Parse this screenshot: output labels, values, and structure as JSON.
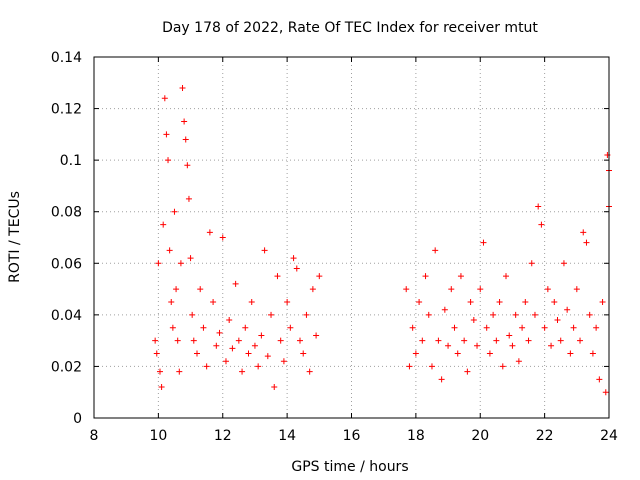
{
  "chart_data": {
    "type": "scatter",
    "title": "Day 178 of 2022, Rate Of TEC Index for receiver mtut",
    "xlabel": "GPS time / hours",
    "ylabel": "ROTI / TECUs",
    "xlim": [
      8,
      24
    ],
    "ylim": [
      0,
      0.14
    ],
    "xticks": [
      "8",
      "10",
      "12",
      "14",
      "16",
      "18",
      "20",
      "22",
      "24"
    ],
    "yticks": [
      "0",
      "0.02",
      "0.04",
      "0.06",
      "0.08",
      "0.1",
      "0.12",
      "0.14"
    ],
    "grid": true,
    "marker": "+",
    "color": "#ff0000",
    "series": [
      {
        "values": [
          [
            9.9,
            0.03
          ],
          [
            9.95,
            0.025
          ],
          [
            10.0,
            0.06
          ],
          [
            10.05,
            0.018
          ],
          [
            10.1,
            0.012
          ],
          [
            10.15,
            0.075
          ],
          [
            10.2,
            0.124
          ],
          [
            10.25,
            0.11
          ],
          [
            10.3,
            0.1
          ],
          [
            10.35,
            0.065
          ],
          [
            10.4,
            0.045
          ],
          [
            10.45,
            0.035
          ],
          [
            10.5,
            0.08
          ],
          [
            10.55,
            0.05
          ],
          [
            10.6,
            0.03
          ],
          [
            10.65,
            0.018
          ],
          [
            10.7,
            0.06
          ],
          [
            10.75,
            0.128
          ],
          [
            10.8,
            0.115
          ],
          [
            10.85,
            0.108
          ],
          [
            10.9,
            0.098
          ],
          [
            10.95,
            0.085
          ],
          [
            11.0,
            0.062
          ],
          [
            11.05,
            0.04
          ],
          [
            11.1,
            0.03
          ],
          [
            11.2,
            0.025
          ],
          [
            11.3,
            0.05
          ],
          [
            11.4,
            0.035
          ],
          [
            11.5,
            0.02
          ],
          [
            11.6,
            0.072
          ],
          [
            11.7,
            0.045
          ],
          [
            11.8,
            0.028
          ],
          [
            11.9,
            0.033
          ],
          [
            12.0,
            0.07
          ],
          [
            12.1,
            0.022
          ],
          [
            12.2,
            0.038
          ],
          [
            12.3,
            0.027
          ],
          [
            12.4,
            0.052
          ],
          [
            12.5,
            0.03
          ],
          [
            12.6,
            0.018
          ],
          [
            12.7,
            0.035
          ],
          [
            12.8,
            0.025
          ],
          [
            12.9,
            0.045
          ],
          [
            13.0,
            0.028
          ],
          [
            13.1,
            0.02
          ],
          [
            13.2,
            0.032
          ],
          [
            13.3,
            0.065
          ],
          [
            13.4,
            0.024
          ],
          [
            13.5,
            0.04
          ],
          [
            13.6,
            0.012
          ],
          [
            13.7,
            0.055
          ],
          [
            13.8,
            0.03
          ],
          [
            13.9,
            0.022
          ],
          [
            14.0,
            0.045
          ],
          [
            14.1,
            0.035
          ],
          [
            14.2,
            0.062
          ],
          [
            14.3,
            0.058
          ],
          [
            14.4,
            0.03
          ],
          [
            14.5,
            0.025
          ],
          [
            14.6,
            0.04
          ],
          [
            14.7,
            0.018
          ],
          [
            14.8,
            0.05
          ],
          [
            14.9,
            0.032
          ],
          [
            15.0,
            0.055
          ],
          [
            17.7,
            0.05
          ],
          [
            17.8,
            0.02
          ],
          [
            17.9,
            0.035
          ],
          [
            18.0,
            0.025
          ],
          [
            18.1,
            0.045
          ],
          [
            18.2,
            0.03
          ],
          [
            18.3,
            0.055
          ],
          [
            18.4,
            0.04
          ],
          [
            18.5,
            0.02
          ],
          [
            18.6,
            0.065
          ],
          [
            18.7,
            0.03
          ],
          [
            18.8,
            0.015
          ],
          [
            18.9,
            0.042
          ],
          [
            19.0,
            0.028
          ],
          [
            19.1,
            0.05
          ],
          [
            19.2,
            0.035
          ],
          [
            19.3,
            0.025
          ],
          [
            19.4,
            0.055
          ],
          [
            19.5,
            0.03
          ],
          [
            19.6,
            0.018
          ],
          [
            19.7,
            0.045
          ],
          [
            19.8,
            0.038
          ],
          [
            19.9,
            0.028
          ],
          [
            20.0,
            0.05
          ],
          [
            20.1,
            0.068
          ],
          [
            20.2,
            0.035
          ],
          [
            20.3,
            0.025
          ],
          [
            20.4,
            0.04
          ],
          [
            20.5,
            0.03
          ],
          [
            20.6,
            0.045
          ],
          [
            20.7,
            0.02
          ],
          [
            20.8,
            0.055
          ],
          [
            20.9,
            0.032
          ],
          [
            21.0,
            0.028
          ],
          [
            21.1,
            0.04
          ],
          [
            21.2,
            0.022
          ],
          [
            21.3,
            0.035
          ],
          [
            21.4,
            0.045
          ],
          [
            21.5,
            0.03
          ],
          [
            21.6,
            0.06
          ],
          [
            21.7,
            0.04
          ],
          [
            21.8,
            0.082
          ],
          [
            21.9,
            0.075
          ],
          [
            22.0,
            0.035
          ],
          [
            22.1,
            0.05
          ],
          [
            22.2,
            0.028
          ],
          [
            22.3,
            0.045
          ],
          [
            22.4,
            0.038
          ],
          [
            22.5,
            0.03
          ],
          [
            22.6,
            0.06
          ],
          [
            22.7,
            0.042
          ],
          [
            22.8,
            0.025
          ],
          [
            22.9,
            0.035
          ],
          [
            23.0,
            0.05
          ],
          [
            23.1,
            0.03
          ],
          [
            23.2,
            0.072
          ],
          [
            23.3,
            0.068
          ],
          [
            23.4,
            0.04
          ],
          [
            23.5,
            0.025
          ],
          [
            23.6,
            0.035
          ],
          [
            23.7,
            0.015
          ],
          [
            23.8,
            0.045
          ],
          [
            23.9,
            0.01
          ],
          [
            23.95,
            0.102
          ],
          [
            24.0,
            0.096
          ],
          [
            24.0,
            0.082
          ]
        ]
      }
    ]
  }
}
